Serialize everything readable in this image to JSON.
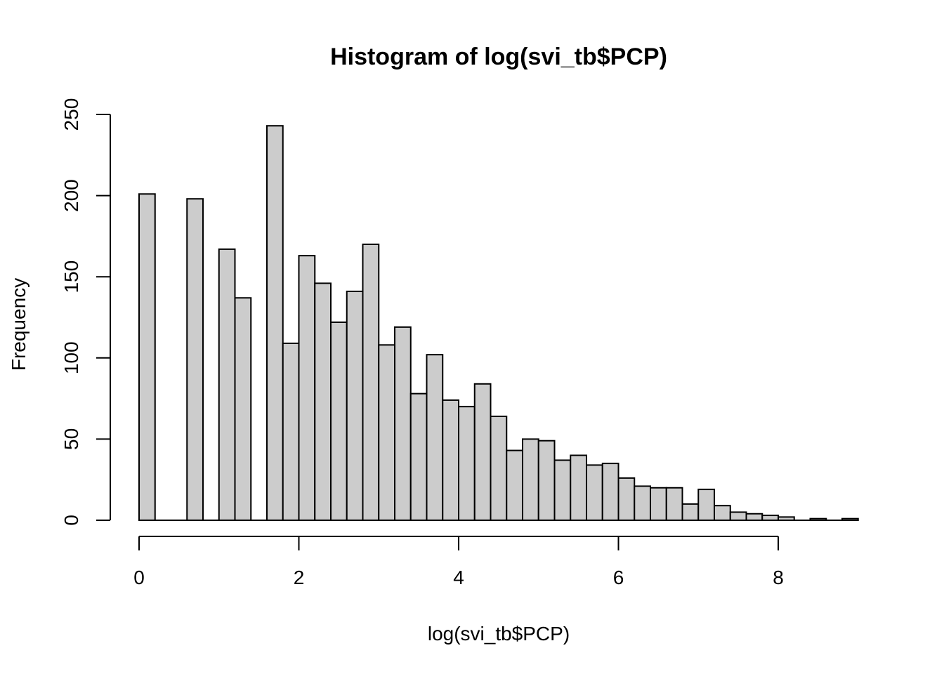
{
  "chart_data": {
    "type": "bar",
    "title": "Histogram of log(svi_tb$PCP)",
    "xlabel": "log(svi_tb$PCP)",
    "ylabel": "Frequency",
    "bin_width": 0.2,
    "x_start": 0,
    "xlim": [
      0,
      9
    ],
    "ylim": [
      0,
      250
    ],
    "x_ticks": [
      0,
      2,
      4,
      6,
      8
    ],
    "y_ticks": [
      0,
      50,
      100,
      150,
      200,
      250
    ],
    "values": [
      201,
      0,
      0,
      198,
      0,
      167,
      137,
      0,
      243,
      109,
      163,
      146,
      122,
      141,
      170,
      108,
      119,
      78,
      102,
      74,
      70,
      84,
      64,
      43,
      50,
      49,
      37,
      40,
      34,
      35,
      26,
      21,
      20,
      20,
      10,
      19,
      9,
      5,
      4,
      3,
      2,
      0,
      1,
      0,
      1
    ],
    "bar_fill": "#cccccc",
    "bar_stroke": "#000000",
    "grid": false
  }
}
